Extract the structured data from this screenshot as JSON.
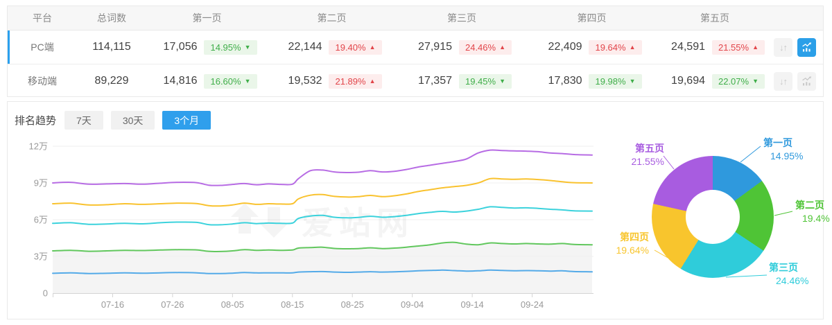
{
  "colors": {
    "accent_blue": "#2aa0ee",
    "badge_up_red": "#e2454a",
    "badge_down_green": "#3fae49",
    "card_border": "#e9e9e9",
    "header_bg": "#f7f7f7"
  },
  "icons": {
    "sort": "sort-arrows-icon",
    "chart": "trend-chart-icon"
  },
  "table": {
    "headers": [
      "平台",
      "总词数",
      "第一页",
      "第二页",
      "第三页",
      "第四页",
      "第五页"
    ],
    "rows": [
      {
        "platform": "PC端",
        "total": "114,115",
        "active": true,
        "sort_active": false,
        "chart_active": true,
        "pages": [
          {
            "count": "17,056",
            "pct": "14.95%",
            "dir": "down"
          },
          {
            "count": "22,144",
            "pct": "19.40%",
            "dir": "up"
          },
          {
            "count": "27,915",
            "pct": "24.46%",
            "dir": "up"
          },
          {
            "count": "22,409",
            "pct": "19.64%",
            "dir": "up"
          },
          {
            "count": "24,591",
            "pct": "21.55%",
            "dir": "up"
          }
        ]
      },
      {
        "platform": "移动端",
        "total": "89,229",
        "active": false,
        "sort_active": false,
        "chart_active": false,
        "pages": [
          {
            "count": "14,816",
            "pct": "16.60%",
            "dir": "down"
          },
          {
            "count": "19,532",
            "pct": "21.89%",
            "dir": "up"
          },
          {
            "count": "17,357",
            "pct": "19.45%",
            "dir": "down"
          },
          {
            "count": "17,830",
            "pct": "19.98%",
            "dir": "down"
          },
          {
            "count": "19,694",
            "pct": "22.07%",
            "dir": "down"
          }
        ]
      }
    ]
  },
  "trend": {
    "label": "排名趋势",
    "tabs": [
      {
        "label": "7天",
        "active": false
      },
      {
        "label": "30天",
        "active": false
      },
      {
        "label": "3个月",
        "active": true
      }
    ],
    "watermark": "爱站网"
  },
  "chart_data": [
    {
      "type": "line",
      "title": "排名趋势 3个月 (PC端, 单位:万)",
      "ylim": [
        0,
        120000
      ],
      "grid": true,
      "ylabels": [
        {
          "label": "0",
          "v": 0
        },
        {
          "label": "3万",
          "v": 3
        },
        {
          "label": "6万",
          "v": 6
        },
        {
          "label": "9万",
          "v": 9
        },
        {
          "label": "12万",
          "v": 12
        }
      ],
      "xticks": [
        {
          "label": "07-16",
          "day": 10
        },
        {
          "label": "07-26",
          "day": 20
        },
        {
          "label": "08-05",
          "day": 30
        },
        {
          "label": "08-15",
          "day": 40
        },
        {
          "label": "08-25",
          "day": 50
        },
        {
          "label": "09-04",
          "day": 60
        },
        {
          "label": "09-14",
          "day": 70
        },
        {
          "label": "09-24",
          "day": 80
        }
      ],
      "days": [
        0,
        3,
        6,
        9,
        12,
        15,
        18,
        21,
        24,
        26,
        28,
        30,
        32,
        34,
        36,
        38,
        40,
        41,
        43,
        45,
        47,
        49,
        51,
        53,
        55,
        57,
        59,
        61,
        63,
        65,
        67,
        69,
        71,
        73,
        75,
        77,
        79,
        81,
        83,
        85,
        87,
        90
      ],
      "series": [
        {
          "name": "第一页",
          "color": "#53aae8",
          "values": [
            1.62,
            1.65,
            1.6,
            1.62,
            1.65,
            1.63,
            1.66,
            1.68,
            1.66,
            1.6,
            1.6,
            1.63,
            1.68,
            1.65,
            1.66,
            1.65,
            1.66,
            1.72,
            1.75,
            1.76,
            1.72,
            1.7,
            1.72,
            1.75,
            1.72,
            1.74,
            1.78,
            1.82,
            1.85,
            1.88,
            1.84,
            1.8,
            1.82,
            1.88,
            1.85,
            1.83,
            1.84,
            1.82,
            1.8,
            1.82,
            1.76,
            1.74
          ]
        },
        {
          "name": "第二页",
          "color": "#61c75d",
          "area": true,
          "values": [
            3.45,
            3.5,
            3.42,
            3.45,
            3.5,
            3.48,
            3.52,
            3.55,
            3.53,
            3.42,
            3.4,
            3.45,
            3.55,
            3.5,
            3.52,
            3.5,
            3.52,
            3.68,
            3.72,
            3.75,
            3.65,
            3.62,
            3.64,
            3.7,
            3.64,
            3.68,
            3.75,
            3.85,
            3.95,
            4.1,
            4.15,
            4.0,
            3.95,
            4.1,
            4.05,
            4.02,
            4.05,
            4.02,
            4.0,
            4.05,
            3.98,
            3.95
          ]
        },
        {
          "name": "第三页",
          "color": "#3bd2dc",
          "values": [
            5.7,
            5.75,
            5.62,
            5.65,
            5.7,
            5.66,
            5.75,
            5.8,
            5.78,
            5.6,
            5.58,
            5.65,
            5.75,
            5.68,
            5.72,
            5.7,
            5.72,
            6.1,
            6.3,
            6.35,
            6.2,
            6.15,
            6.18,
            6.28,
            6.2,
            6.25,
            6.35,
            6.5,
            6.6,
            6.68,
            6.62,
            6.7,
            6.85,
            7.05,
            7.0,
            6.95,
            6.97,
            6.92,
            6.85,
            6.8,
            6.72,
            6.7
          ]
        },
        {
          "name": "第四页",
          "color": "#f9c22e",
          "values": [
            7.3,
            7.35,
            7.2,
            7.22,
            7.3,
            7.25,
            7.3,
            7.35,
            7.32,
            7.15,
            7.12,
            7.2,
            7.35,
            7.25,
            7.3,
            7.28,
            7.3,
            7.7,
            8.0,
            8.05,
            7.9,
            7.85,
            7.88,
            7.98,
            7.88,
            7.95,
            8.1,
            8.3,
            8.45,
            8.6,
            8.7,
            8.8,
            9.0,
            9.35,
            9.33,
            9.3,
            9.32,
            9.28,
            9.2,
            9.1,
            9.02,
            9.0
          ]
        },
        {
          "name": "第五页",
          "color": "#b76ce4",
          "values": [
            9.0,
            9.05,
            8.9,
            8.92,
            8.95,
            8.9,
            8.98,
            9.05,
            9.02,
            8.82,
            8.8,
            8.88,
            8.95,
            8.85,
            8.92,
            8.88,
            8.9,
            9.35,
            10.0,
            10.05,
            9.9,
            9.85,
            9.88,
            10.0,
            9.9,
            9.95,
            10.1,
            10.3,
            10.45,
            10.6,
            10.75,
            10.95,
            11.45,
            11.68,
            11.65,
            11.62,
            11.6,
            11.55,
            11.45,
            11.4,
            11.32,
            11.28
          ]
        }
      ]
    },
    {
      "type": "pie",
      "donut": true,
      "segments": [
        {
          "label": "第一页",
          "pct": 14.95,
          "pct_label": "14.95%",
          "color": "#2f99dd"
        },
        {
          "label": "第二页",
          "pct": 19.4,
          "pct_label": "19.4%",
          "color": "#4fc436"
        },
        {
          "label": "第三页",
          "pct": 24.46,
          "pct_label": "24.46%",
          "color": "#2fccda"
        },
        {
          "label": "第四页",
          "pct": 19.64,
          "pct_label": "19.64%",
          "color": "#f8c52d"
        },
        {
          "label": "第五页",
          "pct": 21.55,
          "pct_label": "21.55%",
          "color": "#a85ce0"
        }
      ]
    }
  ]
}
